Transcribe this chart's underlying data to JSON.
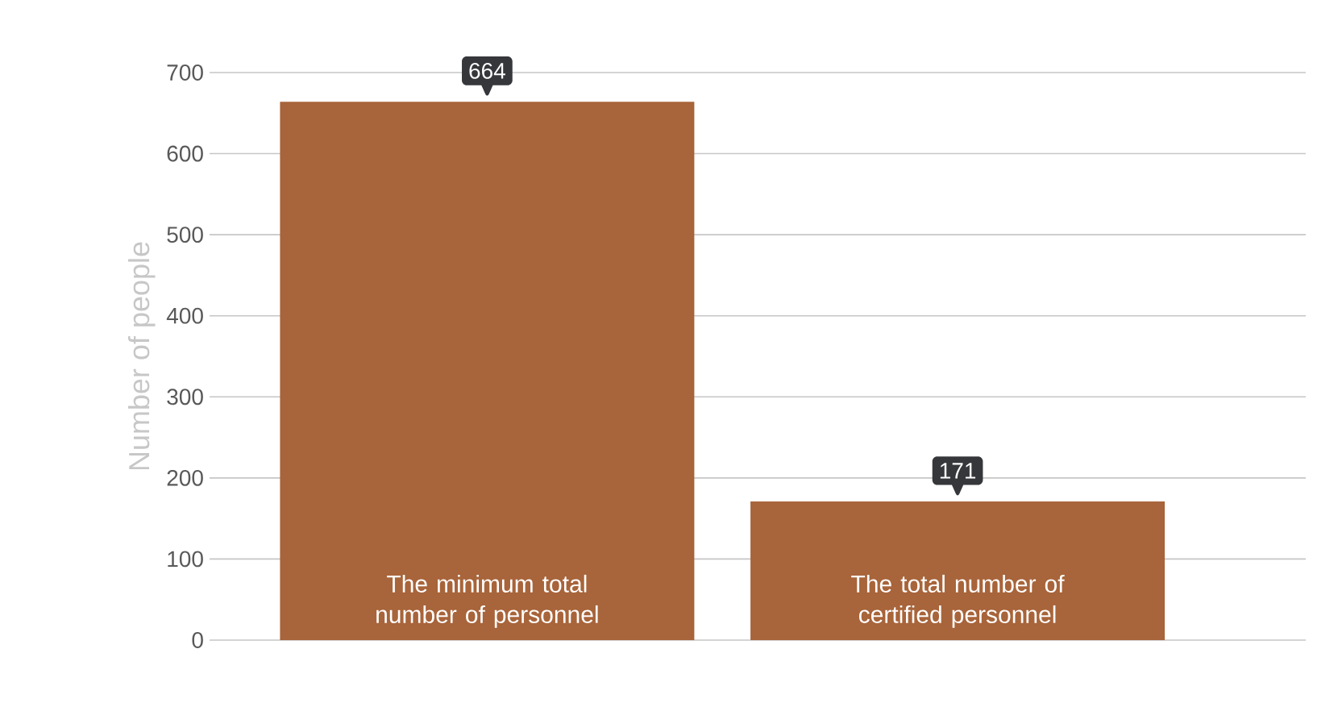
{
  "chart_data": {
    "type": "bar",
    "ylabel": "Number of people",
    "categories": [
      "The minimum total number of personnel",
      "The total number of certified personnel"
    ],
    "values": [
      664,
      171
    ],
    "color": "#a8643a",
    "ylim": [
      0,
      700
    ],
    "yticks": [
      0,
      100,
      200,
      300,
      400,
      500,
      600,
      700
    ],
    "grid": "y",
    "data_labels": true,
    "tick_labels": "y"
  }
}
